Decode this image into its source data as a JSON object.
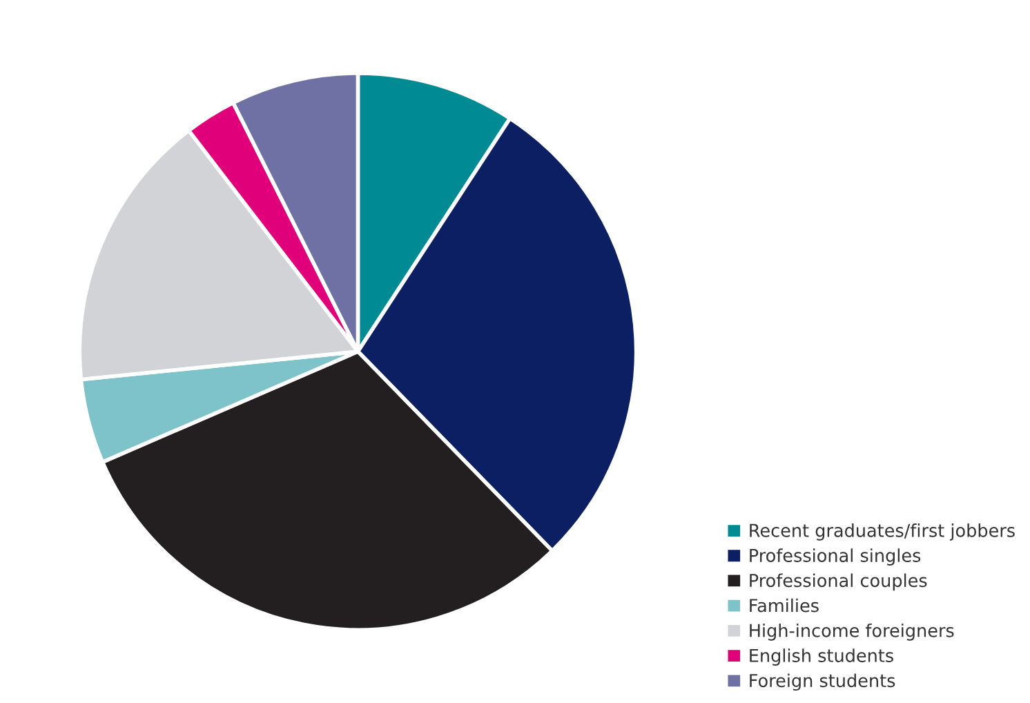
{
  "chart_data": {
    "type": "pie",
    "categories": [
      "Recent graduates/first jobbers",
      "Professional singles",
      "Professional couples",
      "Families",
      "High-income foreigners",
      "English students",
      "Foreign students"
    ],
    "values": [
      9.2,
      28.5,
      30.8,
      4.9,
      16.2,
      3.0,
      7.4
    ],
    "colors": [
      "#008b94",
      "#0d1f63",
      "#231f20",
      "#7fc3ca",
      "#d1d3d6",
      "#e0007a",
      "#6f70a3"
    ],
    "legend": "bottom right"
  }
}
